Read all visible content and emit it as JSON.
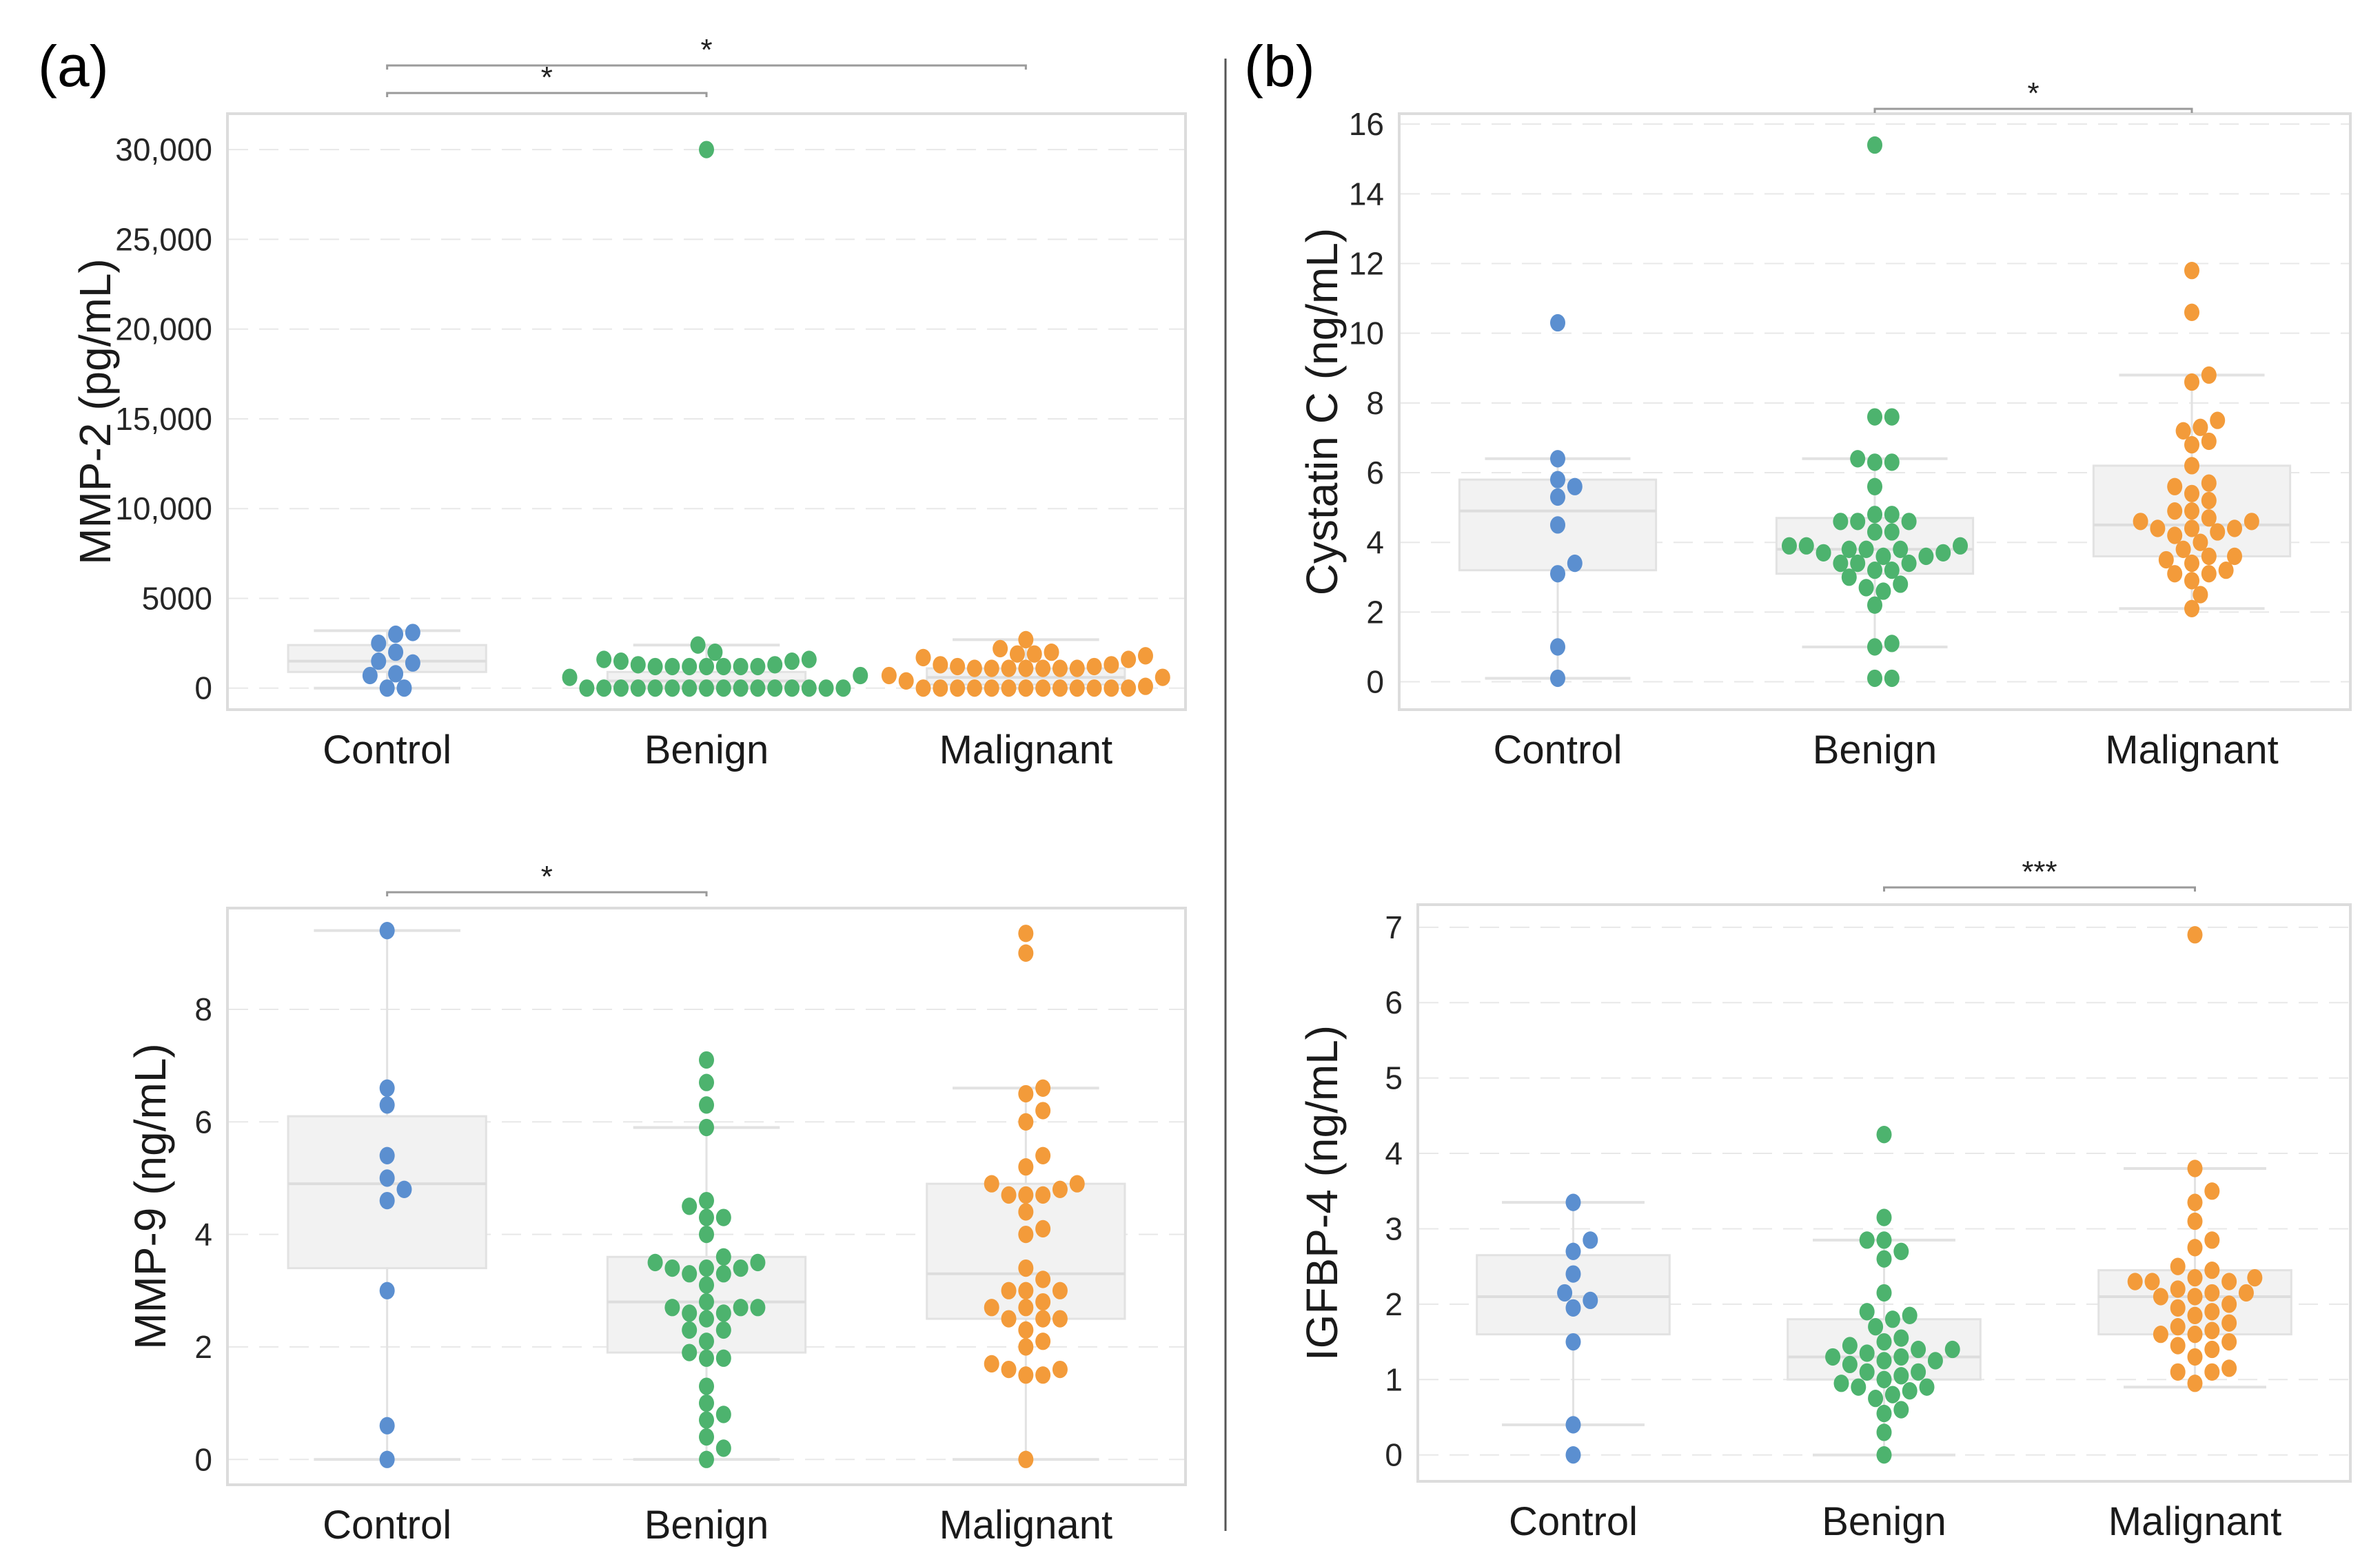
{
  "figure": {
    "panel_labels": [
      "(a)",
      "(b)"
    ]
  },
  "colors": {
    "Control": "#5b8fd0",
    "Benign": "#4db36e",
    "Malignant": "#f39b3a",
    "box_fill": "#f2f2f2",
    "box_edge": "#e2e2e2",
    "grid": "#e8e8e8",
    "frame": "#dcdcdc",
    "bracket": "#9a9a9a"
  },
  "chart_data": [
    {
      "id": "mmp2",
      "panel": "(a)",
      "type": "box-swarm",
      "title": "",
      "ylabel": "MMP-2 (pg/mL)",
      "xlabel": "",
      "categories": [
        "Control",
        "Benign",
        "Malignant"
      ],
      "ylim": [
        -1200,
        32000
      ],
      "yticks": [
        0,
        5000,
        10000,
        15000,
        20000,
        25000,
        30000
      ],
      "ytick_labels": [
        "0",
        "5000",
        "10,000",
        "15,000",
        "20,000",
        "25,000",
        "30,000"
      ],
      "grid": true,
      "boxes": [
        {
          "category": "Control",
          "whisker_low": 0,
          "q1": 900,
          "median": 1500,
          "q3": 2400,
          "whisker_high": 3200
        },
        {
          "category": "Benign",
          "whisker_low": 0,
          "q1": 100,
          "median": 400,
          "q3": 900,
          "whisker_high": 2400
        },
        {
          "category": "Malignant",
          "whisker_low": 0,
          "q1": 200,
          "median": 600,
          "q3": 1100,
          "whisker_high": 2700
        }
      ],
      "points": {
        "Control": [
          0,
          0,
          700,
          800,
          1400,
          1500,
          2000,
          2500,
          3000,
          3100
        ],
        "Benign": [
          30000,
          2400,
          2000,
          1600,
          1500,
          1300,
          1200,
          1200,
          1200,
          1200,
          1200,
          1200,
          1200,
          1300,
          1500,
          1600,
          700,
          600,
          0,
          0,
          0,
          0,
          0,
          0,
          0,
          0,
          0,
          0,
          0,
          0,
          0,
          0,
          0,
          0
        ],
        "Malignant": [
          2700,
          2200,
          2000,
          1900,
          1900,
          1800,
          1700,
          1600,
          1300,
          1200,
          1100,
          1100,
          1100,
          1100,
          1100,
          1100,
          1100,
          1200,
          1300,
          700,
          400,
          600,
          0,
          0,
          0,
          0,
          0,
          0,
          0,
          0,
          0,
          0,
          0,
          0,
          0,
          100
        ]
      },
      "significance": [
        {
          "from": "Control",
          "to": "Benign",
          "label": "*"
        },
        {
          "from": "Control",
          "to": "Malignant",
          "label": "*"
        }
      ]
    },
    {
      "id": "cystatin",
      "panel": "(b)",
      "type": "box-swarm",
      "title": "",
      "ylabel": "Cystatin C (ng/mL)",
      "xlabel": "",
      "categories": [
        "Control",
        "Benign",
        "Malignant"
      ],
      "ylim": [
        -0.8,
        16.3
      ],
      "yticks": [
        0,
        2,
        4,
        6,
        8,
        10,
        12,
        14,
        16
      ],
      "ytick_labels": [
        "0",
        "2",
        "4",
        "6",
        "8",
        "10",
        "12",
        "14",
        "16"
      ],
      "grid": true,
      "boxes": [
        {
          "category": "Control",
          "whisker_low": 0.1,
          "q1": 3.2,
          "median": 4.9,
          "q3": 5.8,
          "whisker_high": 6.4
        },
        {
          "category": "Benign",
          "whisker_low": 1.0,
          "q1": 3.1,
          "median": 3.8,
          "q3": 4.7,
          "whisker_high": 6.4
        },
        {
          "category": "Malignant",
          "whisker_low": 2.1,
          "q1": 3.6,
          "median": 4.5,
          "q3": 6.2,
          "whisker_high": 8.8
        }
      ],
      "points": {
        "Control": [
          10.3,
          6.4,
          5.8,
          5.6,
          5.3,
          4.5,
          3.4,
          3.1,
          1.0,
          0.1
        ],
        "Benign": [
          15.4,
          7.6,
          7.6,
          6.3,
          6.3,
          6.4,
          5.6,
          4.8,
          4.8,
          4.6,
          4.6,
          4.6,
          4.3,
          4.3,
          3.9,
          3.7,
          3.6,
          3.9,
          3.8,
          3.8,
          3.9,
          3.8,
          3.7,
          3.6,
          3.4,
          3.4,
          3.4,
          3.2,
          3.2,
          3.0,
          2.8,
          2.7,
          2.6,
          2.2,
          1.1,
          1.0,
          0.1,
          0.1
        ],
        "Malignant": [
          11.8,
          10.6,
          8.8,
          8.6,
          7.5,
          7.3,
          7.2,
          6.9,
          6.8,
          6.2,
          5.7,
          5.4,
          5.6,
          5.2,
          4.9,
          4.9,
          4.6,
          4.4,
          4.6,
          4.4,
          4.3,
          4.2,
          4.0,
          4.4,
          4.7,
          3.8,
          3.6,
          3.6,
          3.5,
          3.4,
          3.2,
          3.1,
          3.1,
          2.9,
          2.5,
          2.1
        ],
        "_note": "Malignant values approximate; one point per dot"
      },
      "significance": [
        {
          "from": "Benign",
          "to": "Malignant",
          "label": "*"
        }
      ]
    },
    {
      "id": "mmp9",
      "panel": "(a)",
      "type": "box-swarm",
      "title": "",
      "ylabel": "MMP-9 (ng/mL)",
      "xlabel": "",
      "categories": [
        "Control",
        "Benign",
        "Malignant"
      ],
      "ylim": [
        -0.45,
        9.8
      ],
      "yticks": [
        0,
        2,
        4,
        6,
        8
      ],
      "ytick_labels": [
        "0",
        "2",
        "4",
        "6",
        "8"
      ],
      "grid": true,
      "boxes": [
        {
          "category": "Control",
          "whisker_low": 0,
          "q1": 3.4,
          "median": 4.9,
          "q3": 6.1,
          "whisker_high": 9.4
        },
        {
          "category": "Benign",
          "whisker_low": 0,
          "q1": 1.9,
          "median": 2.8,
          "q3": 3.6,
          "whisker_high": 5.9
        },
        {
          "category": "Malignant",
          "whisker_low": 0,
          "q1": 2.5,
          "median": 3.3,
          "q3": 4.9,
          "whisker_high": 6.6
        }
      ],
      "points": {
        "Control": [
          9.4,
          6.6,
          6.3,
          5.4,
          5.0,
          4.8,
          4.6,
          3.0,
          0.6,
          0.0
        ],
        "Benign": [
          7.1,
          6.7,
          6.3,
          5.9,
          4.6,
          4.5,
          4.3,
          4.3,
          4.0,
          3.6,
          3.5,
          3.4,
          3.4,
          3.3,
          3.3,
          3.4,
          3.5,
          3.1,
          2.8,
          2.7,
          2.6,
          2.6,
          2.7,
          2.7,
          2.5,
          2.3,
          2.3,
          2.1,
          1.8,
          1.8,
          1.9,
          1.3,
          1.0,
          0.8,
          0.7,
          0.4,
          0.2,
          0.0
        ],
        "Malignant": [
          9.35,
          9.0,
          6.6,
          6.5,
          6.2,
          6.0,
          5.4,
          5.2,
          4.9,
          4.7,
          4.7,
          4.7,
          4.8,
          4.9,
          4.4,
          4.1,
          4.0,
          3.4,
          3.2,
          3.0,
          3.0,
          3.0,
          2.8,
          2.7,
          2.7,
          2.5,
          2.5,
          2.5,
          2.3,
          2.1,
          2.0,
          1.6,
          1.5,
          1.5,
          1.6,
          1.7,
          0.0
        ]
      },
      "significance": [
        {
          "from": "Control",
          "to": "Benign",
          "label": "*"
        }
      ]
    },
    {
      "id": "igfbp4",
      "panel": "(b)",
      "type": "box-swarm",
      "title": "",
      "ylabel": "IGFBP-4 (ng/mL)",
      "xlabel": "",
      "categories": [
        "Control",
        "Benign",
        "Malignant"
      ],
      "ylim": [
        -0.35,
        7.3
      ],
      "yticks": [
        0,
        1,
        2,
        3,
        4,
        5,
        6,
        7
      ],
      "ytick_labels": [
        "0",
        "1",
        "2",
        "3",
        "4",
        "5",
        "6",
        "7"
      ],
      "grid": true,
      "boxes": [
        {
          "category": "Control",
          "whisker_low": 0.4,
          "q1": 1.6,
          "median": 2.1,
          "q3": 2.65,
          "whisker_high": 3.35
        },
        {
          "category": "Benign",
          "whisker_low": 0.0,
          "q1": 1.0,
          "median": 1.3,
          "q3": 1.8,
          "whisker_high": 2.85
        },
        {
          "category": "Malignant",
          "whisker_low": 0.9,
          "q1": 1.6,
          "median": 2.1,
          "q3": 2.45,
          "whisker_high": 3.8
        }
      ],
      "points": {
        "Control": [
          3.35,
          2.85,
          2.7,
          2.4,
          2.15,
          2.05,
          1.95,
          1.5,
          0.4,
          0.0
        ],
        "Benign": [
          4.25,
          3.15,
          2.85,
          2.85,
          2.7,
          2.6,
          2.15,
          1.9,
          1.85,
          1.8,
          1.7,
          1.55,
          1.5,
          1.45,
          1.4,
          1.4,
          1.35,
          1.3,
          1.3,
          1.25,
          1.25,
          1.2,
          1.1,
          1.1,
          1.05,
          1.0,
          0.95,
          0.9,
          0.9,
          0.85,
          0.8,
          0.75,
          0.6,
          0.55,
          0.3,
          0.0
        ],
        "Malignant": [
          6.9,
          3.8,
          3.5,
          3.35,
          3.1,
          2.85,
          2.75,
          2.5,
          2.45,
          2.3,
          2.3,
          2.35,
          2.3,
          2.35,
          2.2,
          2.15,
          2.15,
          2.1,
          2.1,
          2.0,
          1.95,
          1.9,
          1.85,
          1.75,
          1.7,
          1.65,
          1.6,
          1.6,
          1.5,
          1.45,
          1.4,
          1.3,
          1.15,
          1.1,
          1.1,
          0.95
        ]
      },
      "significance": [
        {
          "from": "Benign",
          "to": "Malignant",
          "label": "***"
        }
      ]
    }
  ]
}
